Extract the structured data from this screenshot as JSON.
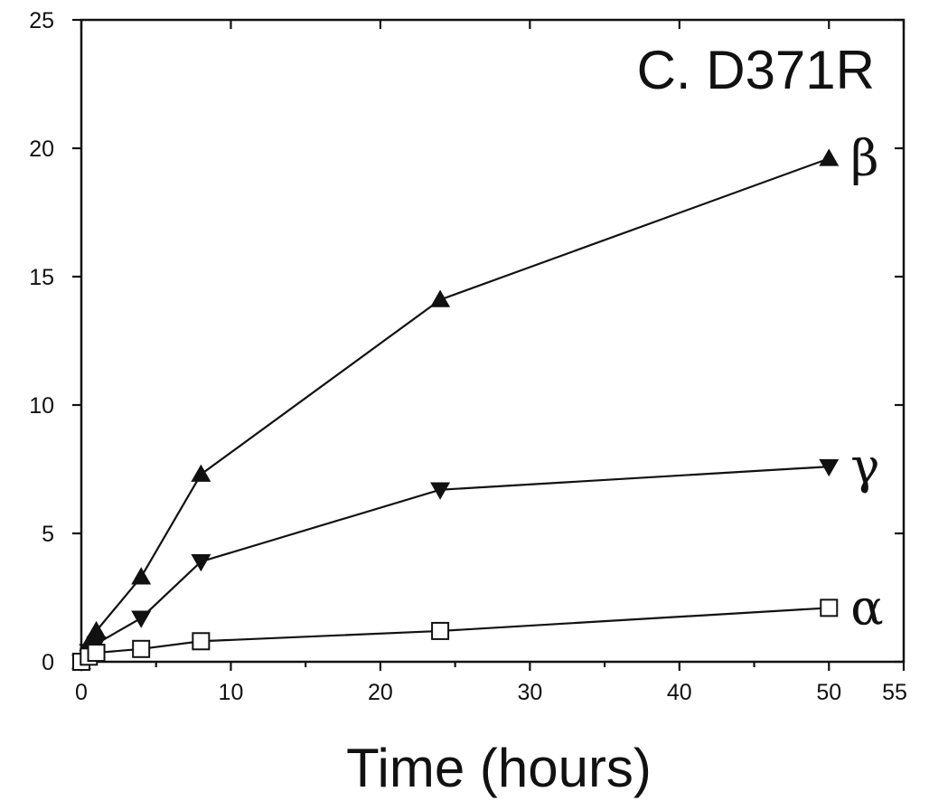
{
  "chart_data": {
    "type": "line",
    "title": "C. D371R",
    "xlabel": "Time (hours)",
    "ylabel": "",
    "xlim": [
      0,
      55
    ],
    "ylim": [
      0,
      25
    ],
    "xticks": [
      0,
      10,
      20,
      30,
      40,
      50,
      55
    ],
    "yticks": [
      0,
      5,
      10,
      15,
      20,
      25
    ],
    "grid": false,
    "series": [
      {
        "name": "β",
        "marker": "triangle-up-filled",
        "x": [
          0,
          0.5,
          1,
          4,
          8,
          24,
          50
        ],
        "y": [
          0,
          0.7,
          1.2,
          3.3,
          7.3,
          14.1,
          19.6
        ]
      },
      {
        "name": "γ",
        "marker": "triangle-down-filled",
        "x": [
          0,
          0.5,
          1,
          4,
          8,
          24,
          50
        ],
        "y": [
          0,
          0.4,
          0.7,
          1.7,
          3.9,
          6.7,
          7.6
        ]
      },
      {
        "name": "α",
        "marker": "square-open",
        "x": [
          0,
          0.5,
          1,
          4,
          8,
          24,
          50
        ],
        "y": [
          0,
          0.2,
          0.35,
          0.5,
          0.8,
          1.2,
          2.1
        ]
      }
    ]
  }
}
